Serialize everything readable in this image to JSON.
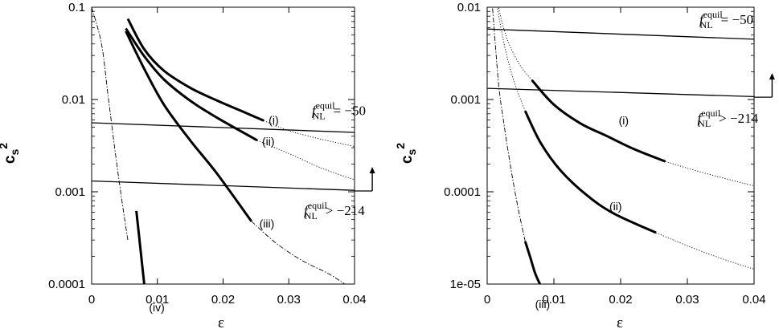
{
  "chart_data": [
    {
      "type": "line",
      "title": "",
      "xlabel": "ε",
      "ylabel": "c_s²",
      "xlim": [
        0,
        0.04
      ],
      "ylim": [
        0.0001,
        0.1
      ],
      "yscale": "log",
      "grid": false,
      "xticks": [
        0,
        0.01,
        0.02,
        0.03,
        0.04
      ],
      "xtick_labels": [
        "0",
        "0.01",
        "0.02",
        "0.03",
        "0.04"
      ],
      "yticks": [
        0.0001,
        0.001,
        0.01,
        0.1
      ],
      "ytick_labels": [
        "0.0001",
        "0.001",
        "0.01",
        "0.1"
      ],
      "series": [
        {
          "name": "(i)",
          "style": "thick",
          "x": [
            0.0055,
            0.008,
            0.011,
            0.015,
            0.019,
            0.023,
            0.0262
          ],
          "y": [
            0.075,
            0.035,
            0.0205,
            0.0134,
            0.0098,
            0.0074,
            0.0059
          ]
        },
        {
          "name": "(ii)",
          "style": "thick",
          "x": [
            0.0052,
            0.008,
            0.011,
            0.015,
            0.019,
            0.0252
          ],
          "y": [
            0.059,
            0.0295,
            0.0165,
            0.0097,
            0.0064,
            0.0036
          ]
        },
        {
          "name": "(iii)",
          "style": "thick",
          "x": [
            0.0052,
            0.008,
            0.011,
            0.015,
            0.019,
            0.0243
          ],
          "y": [
            0.055,
            0.0215,
            0.0088,
            0.0036,
            0.0016,
            0.00048
          ]
        },
        {
          "name": "(iv)",
          "style": "thick",
          "x": [
            0.0068,
            0.0074,
            0.008
          ],
          "y": [
            0.00062,
            0.00025,
            0.0001
          ]
        },
        {
          "style": "dotted",
          "x": [
            0.0262,
            0.03,
            0.035,
            0.04
          ],
          "y": [
            0.0059,
            0.0046,
            0.0037,
            0.0031
          ]
        },
        {
          "style": "dotted",
          "x": [
            0.0252,
            0.03,
            0.035,
            0.04
          ],
          "y": [
            0.0036,
            0.0026,
            0.0018,
            0.00135
          ]
        },
        {
          "style": "dashdot",
          "x": [
            0.0243,
            0.028,
            0.032,
            0.036,
            0.0385
          ],
          "y": [
            0.00048,
            0.00028,
            0.00018,
            0.00013,
            0.0001
          ]
        },
        {
          "style": "dashdot",
          "x": [
            0.0055,
            0.0045,
            0.0035,
            0.0025,
            0.0015,
            0.0
          ],
          "y": [
            0.0003,
            0.0009,
            0.003,
            0.011,
            0.04,
            0.1
          ]
        },
        {
          "style": "thin",
          "x": [
            0,
            0.04
          ],
          "y": [
            0.0056,
            0.0044
          ]
        },
        {
          "style": "thin",
          "x": [
            0,
            0.0427
          ],
          "y": [
            0.00131,
            0.00102
          ]
        }
      ],
      "annotations": [
        {
          "text_sub": "NL",
          "text_sup": "equil",
          "text_rel": "= −50",
          "x": 0.0335,
          "y": 0.0068
        },
        {
          "text_sub": "NL",
          "text_sup": "equil",
          "text_rel": "> −214",
          "x": 0.0323,
          "y": 0.00056
        }
      ]
    },
    {
      "type": "line",
      "title": "",
      "xlabel": "ε",
      "ylabel": "c_s²",
      "xlim": [
        0,
        0.04
      ],
      "ylim": [
        1e-05,
        0.01
      ],
      "yscale": "log",
      "grid": false,
      "xticks": [
        0,
        0.01,
        0.02,
        0.03,
        0.04
      ],
      "xtick_labels": [
        "0",
        "0.01",
        "0.02",
        "0.03",
        "0.04"
      ],
      "yticks": [
        1e-05,
        0.0001,
        0.001,
        0.01
      ],
      "ytick_labels": [
        "1e-05",
        "0.0001",
        "0.001",
        "0.01"
      ],
      "series": [
        {
          "name": "(i)",
          "style": "thick",
          "x": [
            0.0067,
            0.01,
            0.014,
            0.018,
            0.022,
            0.0267
          ],
          "y": [
            0.00162,
            0.00088,
            0.00055,
            0.0004,
            0.00029,
            0.000213
          ]
        },
        {
          "name": "(ii)",
          "style": "thick",
          "x": [
            0.0057,
            0.008,
            0.011,
            0.015,
            0.019,
            0.0253
          ],
          "y": [
            0.00075,
            0.00034,
            0.00017,
            9.1e-05,
            5.8e-05,
            3.6e-05
          ]
        },
        {
          "name": "(iii)",
          "style": "thick",
          "x": [
            0.0057,
            0.0065,
            0.0072,
            0.0079
          ],
          "y": [
            2.9e-05,
            1.9e-05,
            1.3e-05,
            1e-05
          ]
        },
        {
          "style": "dotted",
          "x": [
            0.0267,
            0.03,
            0.035,
            0.04
          ],
          "y": [
            0.000213,
            0.00018,
            0.000143,
            0.000116
          ]
        },
        {
          "style": "dotted",
          "x": [
            0.0253,
            0.03,
            0.035,
            0.04
          ],
          "y": [
            3.6e-05,
            2.6e-05,
            1.9e-05,
            1.45e-05
          ]
        },
        {
          "style": "dotted",
          "x": [
            0.0067,
            0.005,
            0.0035,
            0.0025,
            0.0017
          ],
          "y": [
            0.00162,
            0.0023,
            0.0037,
            0.0058,
            0.01
          ]
        },
        {
          "style": "dotted",
          "x": [
            0.0057,
            0.0045,
            0.0035,
            0.0025,
            0.0015
          ],
          "y": [
            0.00075,
            0.00125,
            0.0021,
            0.0041,
            0.01
          ]
        },
        {
          "style": "dashdot",
          "x": [
            0.0057,
            0.0045,
            0.0035,
            0.0025,
            0.0017,
            0.0008
          ],
          "y": [
            2.9e-05,
            7.4e-05,
            0.00019,
            0.00055,
            0.0015,
            0.01
          ]
        },
        {
          "style": "thin",
          "x": [
            0,
            0.04
          ],
          "y": [
            0.0058,
            0.0045
          ]
        },
        {
          "style": "thin",
          "x": [
            0,
            0.0427
          ],
          "y": [
            0.00132,
            0.00106
          ]
        }
      ],
      "annotations": [
        {
          "text_sub": "NL",
          "text_sup": "equil",
          "text_rel": "= −50",
          "x": 0.0318,
          "y": 0.0066
        },
        {
          "text_sub": "NL",
          "text_sup": "equil",
          "text_rel": "> −214",
          "x": 0.0315,
          "y": 0.00056
        }
      ]
    }
  ]
}
